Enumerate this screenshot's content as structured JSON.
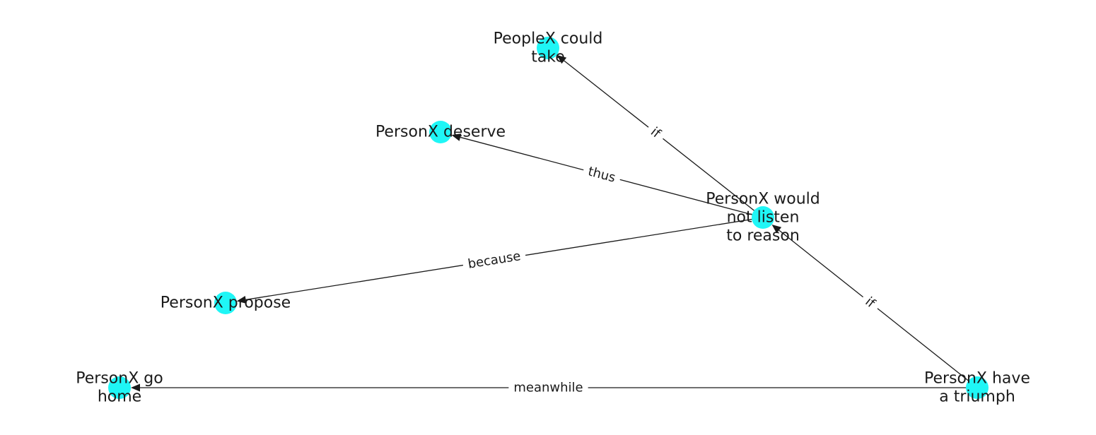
{
  "colors": {
    "node_fill": "#1ff6f6",
    "edge_stroke": "#1a1a1a",
    "text": "#1a1a1a",
    "background": "#ffffff"
  },
  "nodes": [
    {
      "id": "peoplex_could_take",
      "label": "PeopleX could\ntake"
    },
    {
      "id": "personx_deserve",
      "label": "PersonX deserve"
    },
    {
      "id": "personx_would_not_listen",
      "label": "PersonX would\nnot listen\nto reason"
    },
    {
      "id": "personx_propose",
      "label": "PersonX propose"
    },
    {
      "id": "personx_go_home",
      "label": "PersonX go\nhome"
    },
    {
      "id": "personx_have_triumph",
      "label": "PersonX have\na triumph"
    }
  ],
  "edges": [
    {
      "source": "personx_would_not_listen",
      "target": "peoplex_could_take",
      "label": "if"
    },
    {
      "source": "personx_would_not_listen",
      "target": "personx_deserve",
      "label": "thus"
    },
    {
      "source": "personx_would_not_listen",
      "target": "personx_propose",
      "label": "because"
    },
    {
      "source": "personx_have_triumph",
      "target": "personx_would_not_listen",
      "label": "if"
    },
    {
      "source": "personx_have_triumph",
      "target": "personx_go_home",
      "label": "meanwhile"
    }
  ]
}
